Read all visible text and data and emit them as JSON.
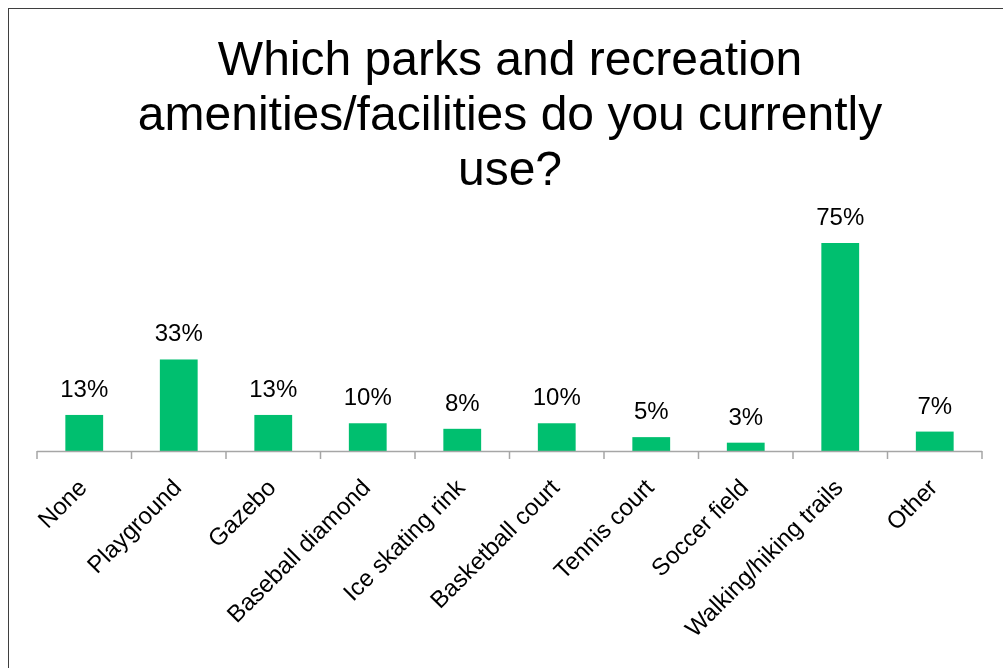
{
  "chart_data": {
    "type": "bar",
    "title": "Which parks and recreation amenities/facilities do you currently use?",
    "categories": [
      "None",
      "Playground",
      "Gazebo",
      "Baseball diamond",
      "Ice skating rink",
      "Basketball court",
      "Tennis court",
      "Soccer field",
      "Walking/hiking trails",
      "Other"
    ],
    "values": [
      13,
      33,
      13,
      10,
      8,
      10,
      5,
      3,
      75,
      7
    ],
    "color": "#00bf6f",
    "value_labels": [
      "13%",
      "33%",
      "13%",
      "10%",
      "8%",
      "10%",
      "5%",
      "3%",
      "75%",
      "7%"
    ]
  }
}
